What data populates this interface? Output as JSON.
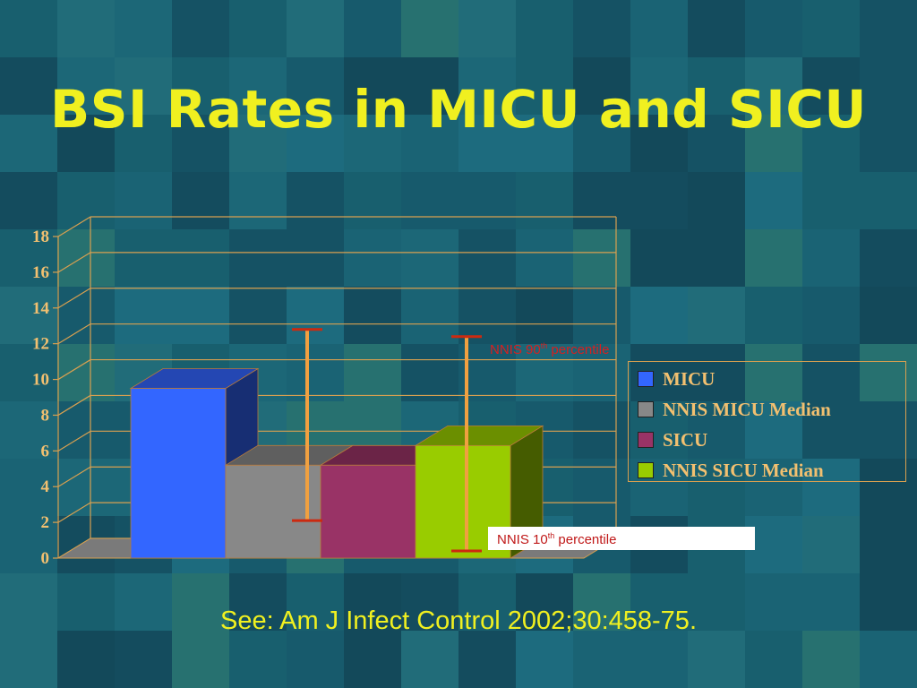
{
  "slide": {
    "title": "BSI Rates in MICU and SICU",
    "citation": "See: Am J Infect Control 2002;30:458-75."
  },
  "annotations": {
    "p90_prefix": "NNIS 90",
    "p90_sup": "th",
    "p90_suffix": " percentile",
    "p10_prefix": "NNIS 10",
    "p10_sup": "th",
    "p10_suffix": " percentile"
  },
  "colors": {
    "title": "#f0f020",
    "axis_text": "#f2c070",
    "annotation": "#d62020",
    "error_bar_stem": "#f0a040",
    "error_bar_cap": "#cc2a10"
  },
  "chart_data": {
    "type": "bar",
    "style": "3d-clustered",
    "categories": [
      ""
    ],
    "series": [
      {
        "name": "MICU",
        "value": 9.5,
        "color": "#3366ff"
      },
      {
        "name": "NNIS MICU Median",
        "value": 5.2,
        "color": "#888888"
      },
      {
        "name": "SICU",
        "value": 5.2,
        "color": "#993366"
      },
      {
        "name": "NNIS SICU Median",
        "value": 6.3,
        "color": "#99cc00"
      }
    ],
    "error_bars": [
      {
        "series": "NNIS MICU Median",
        "low": 2.1,
        "high": 12.8
      },
      {
        "series": "NNIS SICU Median",
        "low": 0.4,
        "high": 12.4
      }
    ],
    "y_ticks": [
      "0",
      "2",
      "4",
      "6",
      "8",
      "10",
      "12",
      "14",
      "16",
      "18"
    ],
    "ylim": [
      0,
      18
    ],
    "grid": true,
    "legend_position": "right"
  }
}
